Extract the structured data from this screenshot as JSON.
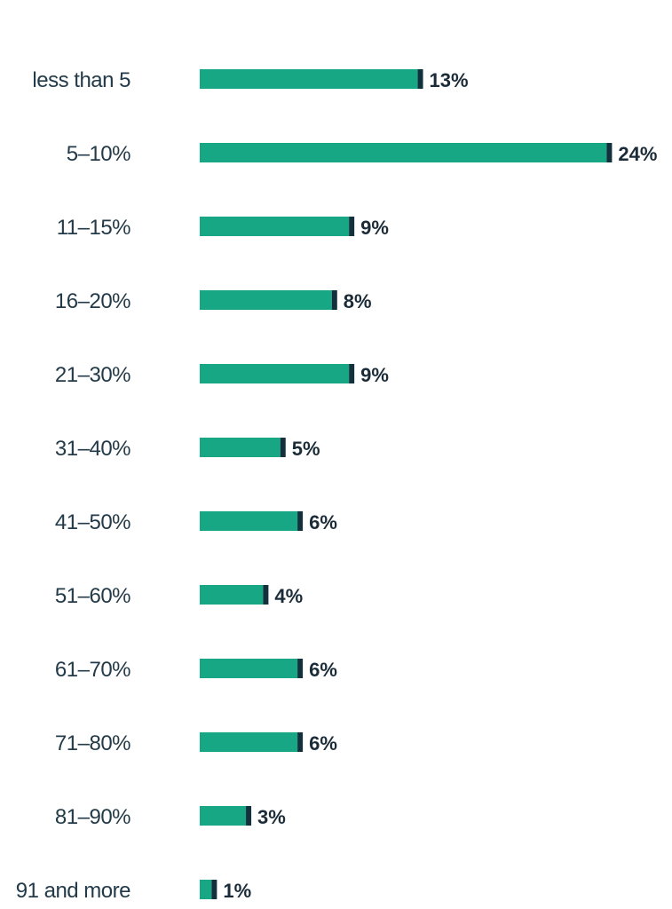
{
  "chart_data": {
    "type": "bar",
    "orientation": "horizontal",
    "categories": [
      "less than 5",
      "5–10%",
      "11–15%",
      "16–20%",
      "21–30%",
      "31–40%",
      "41–50%",
      "51–60%",
      "61–70%",
      "71–80%",
      "81–90%",
      "91 and more"
    ],
    "values": [
      13,
      24,
      9,
      8,
      9,
      5,
      6,
      4,
      6,
      6,
      3,
      1
    ],
    "value_labels": [
      "13%",
      "24%",
      "9%",
      "8%",
      "9%",
      "5%",
      "6%",
      "4%",
      "6%",
      "6%",
      "3%",
      "1%"
    ],
    "grid": false,
    "legend": "none",
    "colors": {
      "bar": "#17a784",
      "bar_cap": "#13303d",
      "text": "#233a48",
      "value_text": "#1b2c38"
    }
  }
}
